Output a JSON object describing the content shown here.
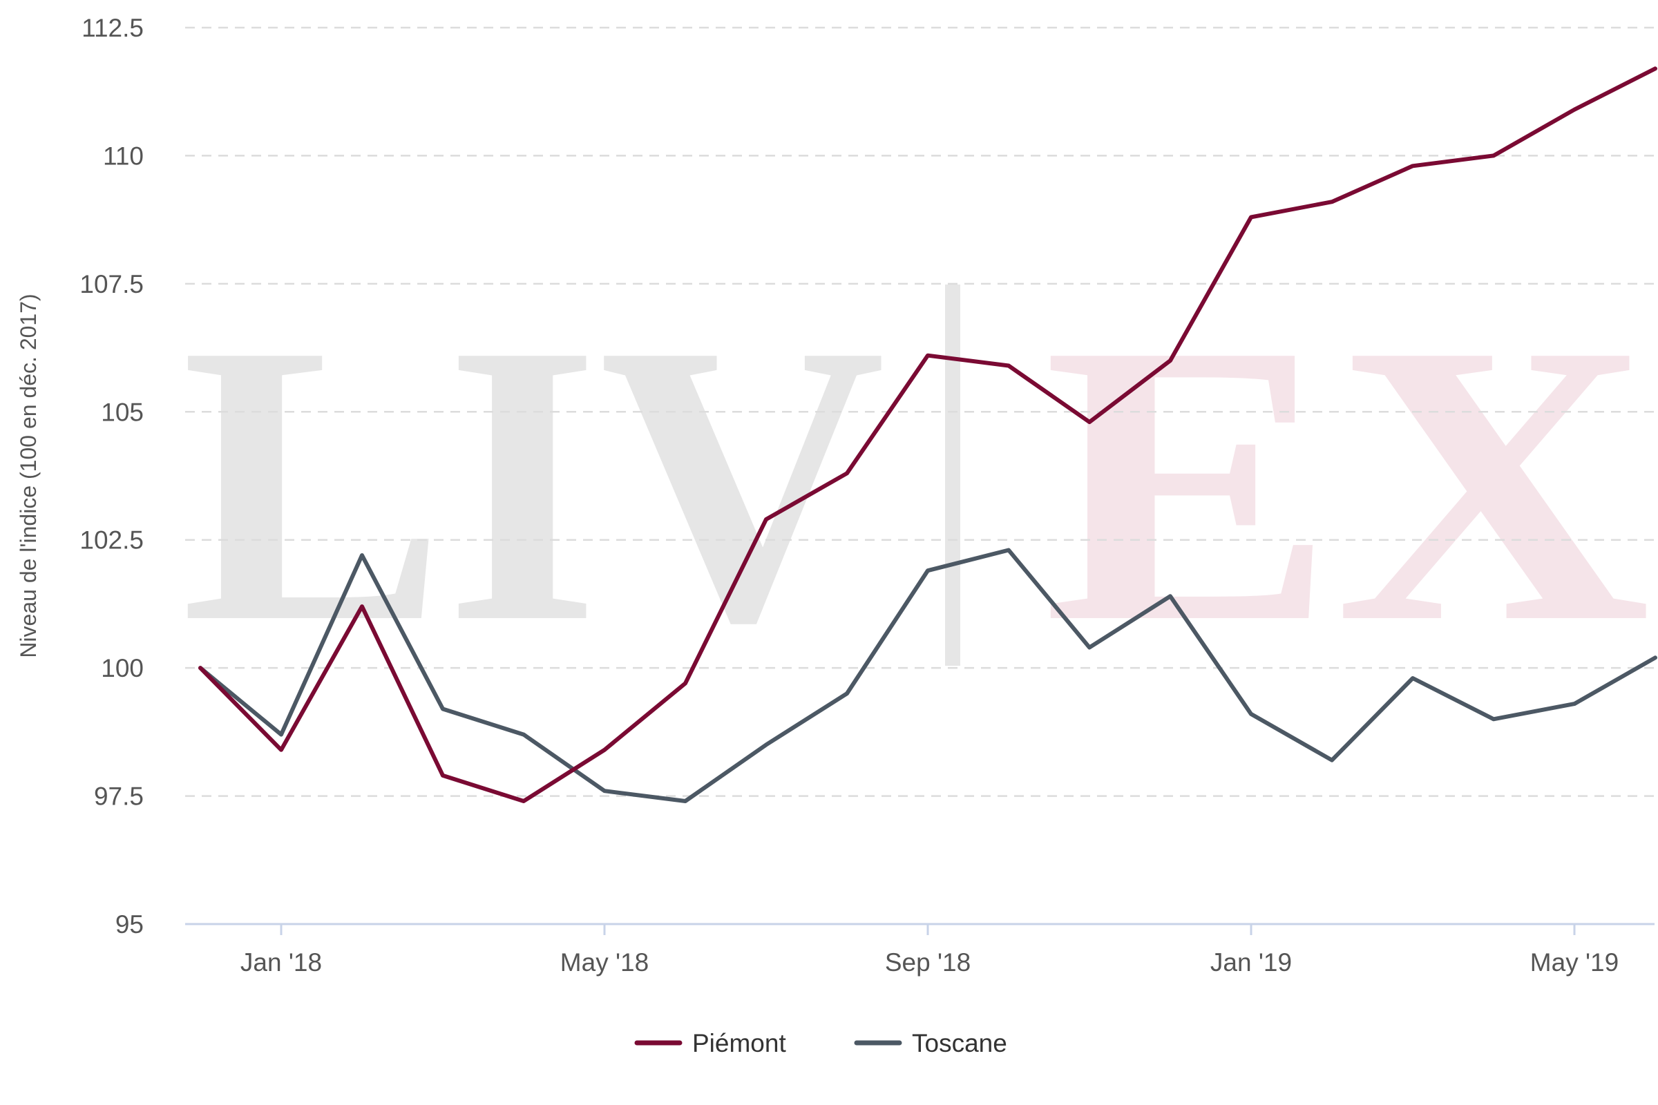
{
  "chart_data": {
    "type": "line",
    "title": "",
    "xlabel": "",
    "ylabel": "Niveau de l'indice (100 en déc. 2017)",
    "ylim": [
      95,
      112.5
    ],
    "yticks": [
      95,
      97.5,
      100,
      102.5,
      105,
      107.5,
      110,
      112.5
    ],
    "ytick_labels": [
      "95",
      "97.5",
      "100",
      "102.5",
      "105",
      "107.5",
      "110",
      "112.5"
    ],
    "x": [
      "Dec '17",
      "Jan '18",
      "Feb '18",
      "Mar '18",
      "Apr '18",
      "May '18",
      "Jun '18",
      "Jul '18",
      "Aug '18",
      "Sep '18",
      "Oct '18",
      "Nov '18",
      "Dec '18",
      "Jan '19",
      "Feb '19",
      "Mar '19",
      "Apr '19",
      "May '19",
      "Jun '19"
    ],
    "xtick_labels": [
      "Jan '18",
      "May '18",
      "Sep '18",
      "Jan '19",
      "May '19"
    ],
    "xtick_positions": [
      1,
      5,
      9,
      13,
      17
    ],
    "grid": "horizontal dashed",
    "legend_placement": "bottom-center",
    "series": [
      {
        "name": "Piémont",
        "color": "#7a0a33",
        "values": [
          100,
          98.4,
          101.2,
          97.9,
          97.4,
          98.4,
          99.7,
          102.9,
          103.8,
          106.1,
          105.9,
          104.8,
          106.0,
          108.8,
          109.1,
          109.8,
          110.0,
          110.9,
          111.7
        ]
      },
      {
        "name": "Toscane",
        "color": "#4c5864",
        "values": [
          100,
          98.7,
          102.2,
          99.2,
          98.7,
          97.6,
          97.4,
          98.5,
          99.5,
          101.9,
          102.3,
          100.4,
          101.4,
          99.1,
          98.2,
          99.8,
          99.0,
          99.3,
          100.2
        ]
      }
    ],
    "watermark": {
      "left_text": "LIV",
      "right_text": "EX",
      "left_color": "#e6e6e6",
      "right_color": "#f5e4e9"
    }
  }
}
